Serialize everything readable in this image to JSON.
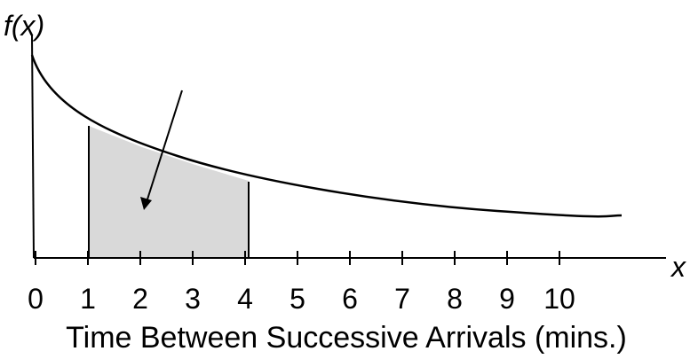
{
  "y_label": "f(x)",
  "x_label": "x",
  "ticks": [
    0,
    1,
    2,
    3,
    4,
    5,
    6,
    7,
    8,
    9,
    10
  ],
  "axis_title": "Time Between Successive Arrivals (mins.)"
}
